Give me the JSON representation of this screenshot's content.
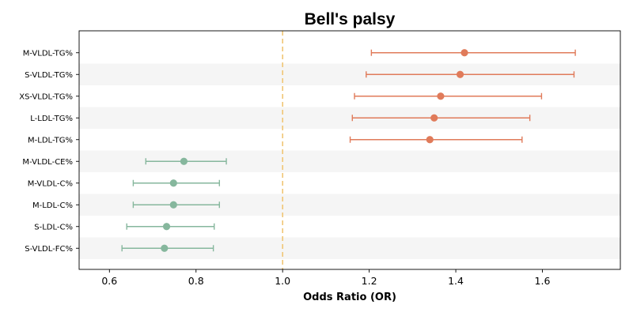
{
  "chart_data": {
    "type": "forest",
    "title": "Bell's palsy",
    "xlabel": "Odds Ratio (OR)",
    "xlim": [
      0.53,
      1.78
    ],
    "xticks": [
      0.6,
      0.8,
      1.0,
      1.2,
      1.4,
      1.6
    ],
    "xtick_labels": [
      "0.6",
      "0.8",
      "1.0",
      "1.2",
      "1.4",
      "1.6"
    ],
    "reference_line": 1.0,
    "categories": [
      "M-VLDL-TG%",
      "S-VLDL-TG%",
      "XS-VLDL-TG%",
      "L-LDL-TG%",
      "M-LDL-TG%",
      "M-VLDL-CE%",
      "M-VLDL-C%",
      "M-LDL-C%",
      "S-LDL-C%",
      "S-VLDL-FC%"
    ],
    "or": [
      1.42,
      1.41,
      1.365,
      1.35,
      1.34,
      0.772,
      0.748,
      0.748,
      0.732,
      0.727
    ],
    "lower": [
      1.205,
      1.193,
      1.166,
      1.161,
      1.156,
      0.684,
      0.655,
      0.655,
      0.64,
      0.629
    ],
    "upper": [
      1.676,
      1.673,
      1.598,
      1.571,
      1.553,
      0.87,
      0.854,
      0.854,
      0.842,
      0.84
    ],
    "colors": {
      "risk": "#e07b5a",
      "protective": "#86b79d",
      "reference": "#f0c674",
      "band": "#f5f5f5"
    }
  }
}
